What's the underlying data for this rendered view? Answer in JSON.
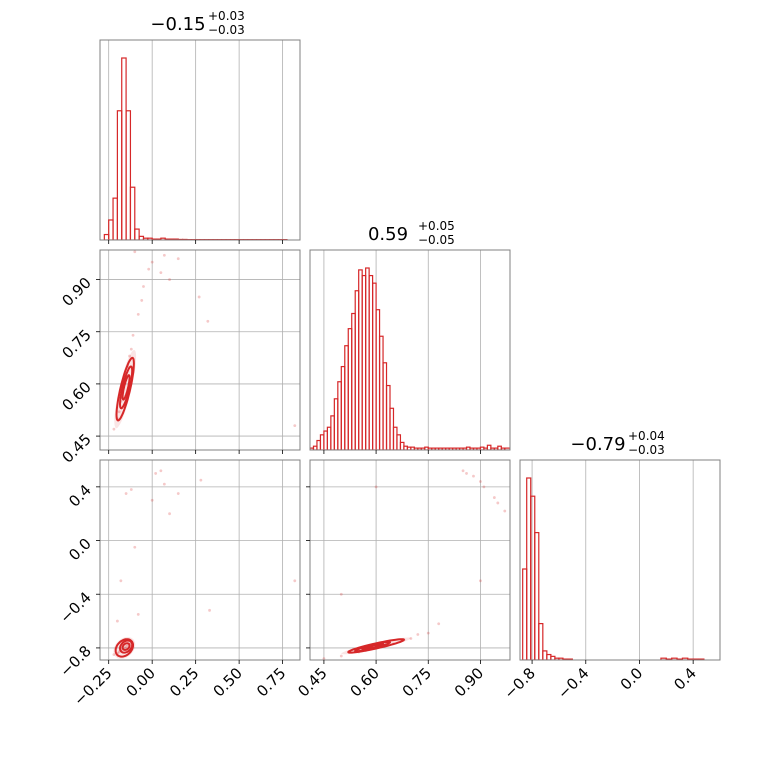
{
  "figure": {
    "kind": "corner-plot",
    "accent_color": "#d62728",
    "frame_color": "#808080",
    "grid_color": "#b0b0b0"
  },
  "chart_data": [
    {
      "panel": "hist-param1",
      "type": "bar",
      "title": {
        "value": "−0.15",
        "plus": "+0.03",
        "minus": "−0.03"
      },
      "xlim": [
        -0.3,
        0.85
      ],
      "grid": true,
      "step": true,
      "bin_edges": [
        -0.275,
        -0.25,
        -0.225,
        -0.2,
        -0.175,
        -0.15,
        -0.125,
        -0.1,
        -0.075,
        -0.05,
        -0.025,
        0.0,
        0.025,
        0.05,
        0.075,
        0.1,
        0.125,
        0.15,
        0.175,
        0.2,
        0.225,
        0.25,
        0.275,
        0.3,
        0.325,
        0.35,
        0.375,
        0.4,
        0.425,
        0.45,
        0.475,
        0.5,
        0.525,
        0.55,
        0.575,
        0.6,
        0.625,
        0.65,
        0.675,
        0.7,
        0.725,
        0.75,
        0.775
      ],
      "values": [
        0.03,
        0.11,
        0.23,
        0.71,
        1.0,
        0.71,
        0.29,
        0.06,
        0.02,
        0.01,
        0.01,
        0.005,
        0.005,
        0.01,
        0.005,
        0.005,
        0.005,
        0.003,
        0.003,
        0.002,
        0.002,
        0.002,
        0.002,
        0.002,
        0.002,
        0.002,
        0.002,
        0.002,
        0.002,
        0.002,
        0.002,
        0.002,
        0.002,
        0.002,
        0.002,
        0.002,
        0.002,
        0.002,
        0.002,
        0.002,
        0.002,
        0.002
      ]
    },
    {
      "panel": "hist-param2",
      "type": "bar",
      "title": {
        "value": "0.59",
        "plus": "+0.05",
        "minus": "−0.05"
      },
      "xlim": [
        0.41,
        0.985
      ],
      "grid": true,
      "step": true,
      "bin_edges": [
        0.41,
        0.42,
        0.43,
        0.44,
        0.45,
        0.46,
        0.47,
        0.48,
        0.49,
        0.5,
        0.51,
        0.52,
        0.53,
        0.54,
        0.55,
        0.56,
        0.57,
        0.58,
        0.59,
        0.6,
        0.61,
        0.62,
        0.63,
        0.64,
        0.65,
        0.66,
        0.67,
        0.68,
        0.69,
        0.7,
        0.71,
        0.72,
        0.73,
        0.74,
        0.75,
        0.76,
        0.77,
        0.78,
        0.79,
        0.8,
        0.81,
        0.82,
        0.83,
        0.84,
        0.85,
        0.86,
        0.87,
        0.88,
        0.89,
        0.9,
        0.91,
        0.92,
        0.93,
        0.94,
        0.95,
        0.96,
        0.97,
        0.985
      ],
      "values": [
        0.01,
        0.02,
        0.05,
        0.08,
        0.1,
        0.12,
        0.18,
        0.27,
        0.36,
        0.44,
        0.55,
        0.64,
        0.72,
        0.84,
        0.95,
        0.92,
        0.96,
        0.92,
        0.88,
        0.74,
        0.6,
        0.46,
        0.34,
        0.22,
        0.12,
        0.08,
        0.04,
        0.02,
        0.015,
        0.015,
        0.01,
        0.01,
        0.01,
        0.015,
        0.01,
        0.01,
        0.01,
        0.01,
        0.01,
        0.01,
        0.01,
        0.01,
        0.01,
        0.01,
        0.01,
        0.015,
        0.01,
        0.01,
        0.01,
        0.015,
        0.01,
        0.025,
        0.01,
        0.01,
        0.02,
        0.01,
        0.01
      ]
    },
    {
      "panel": "hist-param3",
      "type": "bar",
      "title": {
        "value": "−0.79",
        "plus": "+0.04",
        "minus": "−0.03"
      },
      "xlim": [
        -0.89,
        0.6
      ],
      "grid": true,
      "step": true,
      "bin_edges": [
        -0.87,
        -0.84,
        -0.81,
        -0.78,
        -0.75,
        -0.72,
        -0.69,
        -0.66,
        -0.63,
        -0.6,
        -0.57,
        -0.54,
        -0.5,
        0.16,
        0.2,
        0.24,
        0.28,
        0.32,
        0.36,
        0.4,
        0.44,
        0.48
      ],
      "values": [
        0.5,
        1.0,
        0.9,
        0.7,
        0.2,
        0.05,
        0.03,
        0.02,
        0.01,
        0.01,
        0.005,
        0.005,
        0.0,
        0.01,
        0.005,
        0.01,
        0.005,
        0.01,
        0.005,
        0.005,
        0.005
      ]
    },
    {
      "panel": "scatter-param1-param2",
      "type": "scatter",
      "xlim": [
        -0.3,
        0.85
      ],
      "ylim": [
        0.41,
        0.985
      ],
      "grid": true,
      "points": [
        [
          -0.18,
          0.55
        ],
        [
          -0.16,
          0.6
        ],
        [
          -0.14,
          0.65
        ],
        [
          -0.2,
          0.5
        ],
        [
          -0.12,
          0.7
        ],
        [
          -0.17,
          0.58
        ],
        [
          -0.15,
          0.62
        ],
        [
          -0.13,
          0.68
        ],
        [
          -0.19,
          0.52
        ],
        [
          -0.11,
          0.74
        ],
        [
          0.0,
          0.95
        ],
        [
          0.05,
          0.92
        ],
        [
          0.1,
          0.9
        ],
        [
          -0.05,
          0.88
        ],
        [
          0.32,
          0.78
        ],
        [
          -0.1,
          0.98
        ],
        [
          -0.22,
          0.47
        ],
        [
          -0.08,
          0.8
        ],
        [
          0.27,
          0.85
        ],
        [
          0.82,
          0.48
        ],
        [
          -0.02,
          0.93
        ],
        [
          0.15,
          0.96
        ],
        [
          -0.06,
          0.84
        ],
        [
          0.07,
          0.97
        ]
      ],
      "contours": [
        {
          "center": [
            -0.15,
            0.59
          ],
          "sx": 0.02,
          "sy": 0.035,
          "rho": 0.8
        },
        {
          "center": [
            -0.15,
            0.59
          ],
          "sx": 0.035,
          "sy": 0.06,
          "rho": 0.8
        },
        {
          "center": [
            -0.155,
            0.585
          ],
          "sx": 0.05,
          "sy": 0.09,
          "rho": 0.82
        }
      ]
    },
    {
      "panel": "scatter-param1-param3",
      "type": "scatter",
      "xlim": [
        -0.3,
        0.85
      ],
      "ylim": [
        -0.89,
        0.6
      ],
      "grid": true,
      "points": [
        [
          -0.16,
          -0.8
        ],
        [
          -0.14,
          -0.78
        ],
        [
          -0.18,
          -0.82
        ],
        [
          -0.12,
          -0.76
        ],
        [
          -0.2,
          -0.84
        ],
        [
          -0.15,
          -0.79
        ],
        [
          -0.17,
          -0.81
        ],
        [
          -0.13,
          -0.77
        ],
        [
          -0.22,
          -0.85
        ],
        [
          -0.19,
          -0.83
        ],
        [
          -0.15,
          0.35
        ],
        [
          0.02,
          0.5
        ],
        [
          0.07,
          0.42
        ],
        [
          0.15,
          0.35
        ],
        [
          0.28,
          0.45
        ],
        [
          0.33,
          -0.52
        ],
        [
          -0.1,
          -0.05
        ],
        [
          -0.18,
          -0.3
        ],
        [
          0.0,
          0.3
        ],
        [
          0.1,
          0.2
        ],
        [
          0.82,
          -0.3
        ],
        [
          -0.08,
          -0.55
        ],
        [
          -0.2,
          -0.6
        ],
        [
          -0.12,
          0.38
        ],
        [
          0.05,
          0.52
        ]
      ],
      "contours": [
        {
          "center": [
            -0.15,
            -0.79
          ],
          "sx": 0.02,
          "sy": 0.025,
          "rho": 0.3
        },
        {
          "center": [
            -0.15,
            -0.79
          ],
          "sx": 0.035,
          "sy": 0.045,
          "rho": 0.3
        },
        {
          "center": [
            -0.16,
            -0.8
          ],
          "sx": 0.05,
          "sy": 0.065,
          "rho": 0.3
        }
      ]
    },
    {
      "panel": "scatter-param2-param3",
      "type": "scatter",
      "xlim": [
        0.41,
        0.985
      ],
      "ylim": [
        -0.89,
        0.6
      ],
      "grid": true,
      "points": [
        [
          0.5,
          -0.86
        ],
        [
          0.55,
          -0.83
        ],
        [
          0.6,
          -0.8
        ],
        [
          0.65,
          -0.77
        ],
        [
          0.7,
          -0.73
        ],
        [
          0.75,
          -0.69
        ],
        [
          0.72,
          -0.7
        ],
        [
          0.68,
          -0.74
        ],
        [
          0.85,
          0.52
        ],
        [
          0.88,
          0.48
        ],
        [
          0.91,
          0.4
        ],
        [
          0.94,
          0.32
        ],
        [
          0.97,
          0.22
        ],
        [
          0.9,
          0.44
        ],
        [
          0.86,
          0.5
        ],
        [
          0.95,
          0.28
        ],
        [
          0.45,
          -0.88
        ],
        [
          0.5,
          -0.4
        ],
        [
          0.9,
          -0.3
        ],
        [
          0.6,
          0.4
        ],
        [
          0.78,
          -0.62
        ],
        [
          0.62,
          -0.78
        ],
        [
          0.57,
          -0.82
        ]
      ],
      "contours": [
        {
          "center": [
            0.59,
            -0.79
          ],
          "sx": 0.03,
          "sy": 0.02,
          "rho": 0.92
        },
        {
          "center": [
            0.59,
            -0.79
          ],
          "sx": 0.05,
          "sy": 0.035,
          "rho": 0.92
        },
        {
          "center": [
            0.6,
            -0.785
          ],
          "sx": 0.08,
          "sy": 0.05,
          "rho": 0.92
        }
      ]
    }
  ],
  "axes": {
    "param1_ticks": [
      "−0.25",
      "0.00",
      "0.25",
      "0.50",
      "0.75"
    ],
    "param2_ticks": [
      "0.45",
      "0.60",
      "0.75",
      "0.90"
    ],
    "param3_ticks": [
      "−0.8",
      "−0.4",
      "0.0",
      "0.4"
    ],
    "param1_tick_values": [
      -0.25,
      0.0,
      0.25,
      0.5,
      0.75
    ],
    "param2_tick_values": [
      0.45,
      0.6,
      0.75,
      0.9
    ],
    "param3_tick_values": [
      -0.8,
      -0.4,
      0.0,
      0.4
    ]
  }
}
